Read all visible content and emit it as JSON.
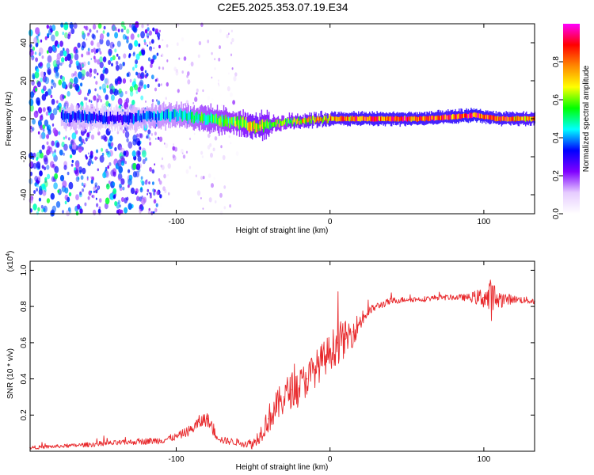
{
  "title": "C2E5.2025.353.07.19.E34",
  "chart_data": [
    {
      "type": "heatmap",
      "name": "spectrogram",
      "xlabel": "Height of straight line (km)",
      "ylabel": "Frequency (Hz)",
      "xlim": [
        -195,
        133
      ],
      "ylim": [
        -50,
        50
      ],
      "xticks": [
        -100,
        0,
        100
      ],
      "xtick_labels": [
        "-100",
        "0",
        "100"
      ],
      "yticks": [
        -40,
        -20,
        0,
        20,
        40
      ],
      "ytick_labels": [
        "-40",
        "-20",
        "0",
        "20",
        "40"
      ],
      "colorbar": {
        "label": "Normalized spectral amplitude",
        "range": [
          0,
          1
        ],
        "ticks": [
          0,
          0.2,
          0.4,
          0.6,
          0.8
        ],
        "tick_labels": [
          "0.0",
          "0.2",
          "0.4",
          "0.6",
          "0.8"
        ],
        "colormap": [
          "#ffffff",
          "#e6ccff",
          "#7f00ff",
          "#0000ff",
          "#00ffff",
          "#00ff00",
          "#ffff00",
          "#ff8800",
          "#ff0000",
          "#ff00ff"
        ]
      },
      "ridge": {
        "description": "dominant frequency ridge vs height",
        "x": [
          -160,
          -140,
          -120,
          -100,
          -80,
          -60,
          -50,
          -40,
          -30,
          -20,
          0,
          20,
          40,
          60,
          80,
          95,
          100,
          110,
          133
        ],
        "y": [
          1,
          0,
          1,
          2,
          0,
          -2,
          -4,
          -3,
          -2,
          -1,
          0,
          0,
          0,
          0,
          1,
          2,
          1,
          0,
          0
        ],
        "amplitude": [
          0.35,
          0.3,
          0.4,
          0.45,
          0.55,
          0.6,
          0.7,
          0.65,
          0.6,
          0.7,
          0.8,
          0.85,
          0.85,
          0.85,
          0.85,
          0.9,
          0.85,
          0.85,
          0.8
        ]
      },
      "noise_region": {
        "x_range": [
          -195,
          -110
        ],
        "level": 0.1,
        "sparse_until": -60
      }
    },
    {
      "type": "line",
      "name": "snr",
      "xlabel": "Height of straight line (km)",
      "ylabel": "SNR (10 * v/v)",
      "yscale_label": "(x10",
      "yscale_exp": "4",
      "yscale_close": ")",
      "xlim": [
        -195,
        133
      ],
      "ylim": [
        0,
        1.05
      ],
      "xticks": [
        -100,
        0,
        100
      ],
      "xtick_labels": [
        "-100",
        "0",
        "100"
      ],
      "yticks": [
        0.2,
        0.4,
        0.6,
        0.8,
        1.0
      ],
      "ytick_labels": [
        "0.2",
        "0.4",
        "0.6",
        "0.8",
        "1.0"
      ],
      "color": "#e8292c",
      "series": [
        {
          "name": "SNR",
          "x": [
            -195,
            -170,
            -150,
            -130,
            -110,
            -100,
            -90,
            -85,
            -80,
            -75,
            -70,
            -60,
            -50,
            -45,
            -40,
            -35,
            -30,
            -25,
            -20,
            -15,
            -10,
            -5,
            0,
            5,
            10,
            15,
            20,
            25,
            30,
            40,
            50,
            60,
            70,
            80,
            90,
            100,
            105,
            110,
            120,
            133
          ],
          "y": [
            0.02,
            0.03,
            0.04,
            0.05,
            0.06,
            0.08,
            0.12,
            0.16,
            0.18,
            0.1,
            0.06,
            0.05,
            0.04,
            0.1,
            0.18,
            0.24,
            0.3,
            0.34,
            0.36,
            0.4,
            0.45,
            0.5,
            0.55,
            0.6,
            0.62,
            0.66,
            0.72,
            0.77,
            0.8,
            0.83,
            0.84,
            0.84,
            0.85,
            0.85,
            0.85,
            0.85,
            0.84,
            0.84,
            0.84,
            0.83
          ],
          "noise": [
            0.01,
            0.01,
            0.015,
            0.015,
            0.02,
            0.02,
            0.03,
            0.04,
            0.04,
            0.03,
            0.02,
            0.02,
            0.03,
            0.05,
            0.08,
            0.09,
            0.1,
            0.1,
            0.1,
            0.1,
            0.1,
            0.1,
            0.1,
            0.12,
            0.1,
            0.08,
            0.05,
            0.03,
            0.02,
            0.02,
            0.015,
            0.015,
            0.015,
            0.015,
            0.02,
            0.06,
            0.12,
            0.05,
            0.02,
            0.02
          ]
        }
      ]
    }
  ]
}
